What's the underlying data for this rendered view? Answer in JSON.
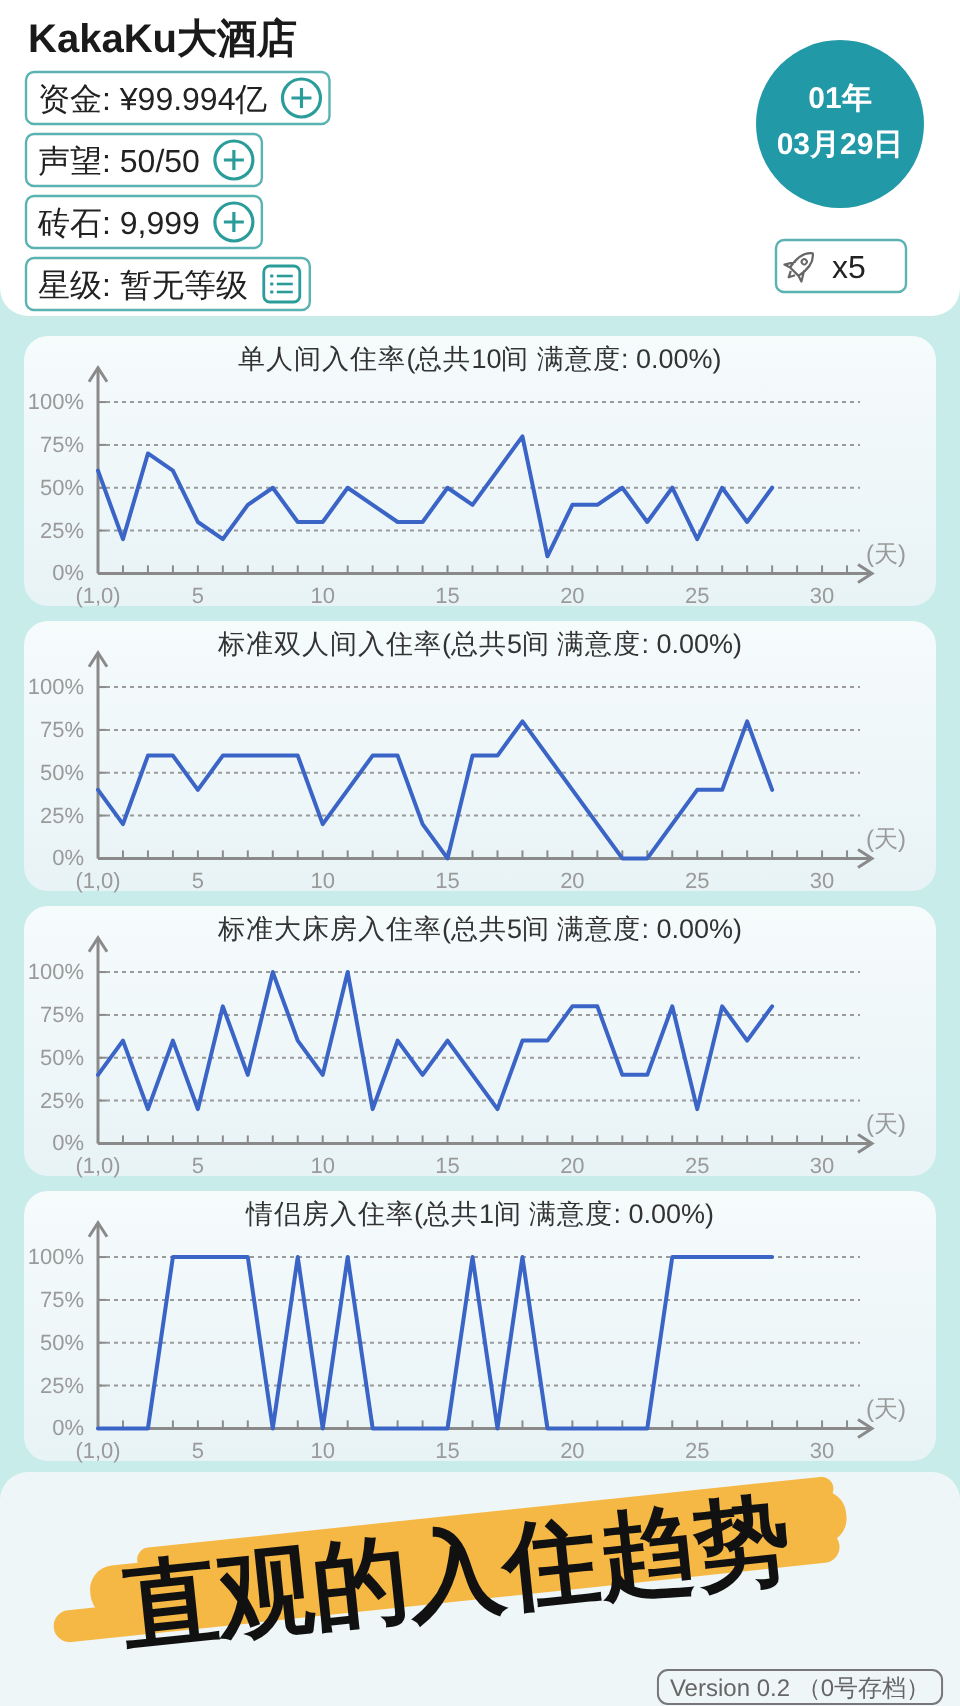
{
  "chart_data": [
    {
      "type": "other",
      "title": "KakaKu大酒店",
      "annotations": [
        "资金: ¥99.994亿",
        "声望: 50/50",
        "砖石: 9,999",
        "星级: 暂无等级",
        "01年",
        "03月29日",
        "x5"
      ]
    },
    {
      "type": "line",
      "title": "单人间入住率(总共10间 满意度: 0.00%)",
      "xlabel": "(天)",
      "x": [
        1,
        2,
        3,
        4,
        5,
        6,
        7,
        8,
        9,
        10,
        11,
        12,
        13,
        14,
        15,
        16,
        17,
        18,
        19,
        20,
        21,
        22,
        23,
        24,
        25,
        26,
        27,
        28
      ],
      "series": [
        {
          "color": "#3b64c7",
          "values": [
            60,
            20,
            70,
            60,
            30,
            20,
            40,
            50,
            30,
            30,
            50,
            40,
            30,
            30,
            50,
            40,
            60,
            80,
            10,
            40,
            40,
            50,
            30,
            50,
            20,
            50,
            30,
            50
          ]
        }
      ],
      "xlim": [
        1,
        32
      ],
      "ylim": [
        0,
        120
      ],
      "xticks": [
        {
          "value": 1,
          "label": "(1,0)"
        },
        {
          "value": 2,
          "label": null
        },
        {
          "value": 3,
          "label": null
        },
        {
          "value": 4,
          "label": null
        },
        5,
        {
          "value": 6,
          "label": null
        },
        {
          "value": 7,
          "label": null
        },
        {
          "value": 8,
          "label": null
        },
        {
          "value": 9,
          "label": null
        },
        10,
        {
          "value": 11,
          "label": null
        },
        {
          "value": 12,
          "label": null
        },
        {
          "value": 13,
          "label": null
        },
        {
          "value": 14,
          "label": null
        },
        15,
        {
          "value": 16,
          "label": null
        },
        {
          "value": 17,
          "label": null
        },
        {
          "value": 18,
          "label": null
        },
        {
          "value": 19,
          "label": null
        },
        20,
        {
          "value": 21,
          "label": null
        },
        {
          "value": 22,
          "label": null
        },
        {
          "value": 23,
          "label": null
        },
        {
          "value": 24,
          "label": null
        },
        25,
        {
          "value": 26,
          "label": null
        },
        {
          "value": 27,
          "label": null
        },
        {
          "value": 28,
          "label": null
        },
        {
          "value": 29,
          "label": null
        },
        30,
        {
          "value": 31,
          "label": null
        }
      ],
      "yticks": [
        {
          "value": 0,
          "label": "0%"
        },
        {
          "value": 25,
          "label": "25%"
        },
        {
          "value": 50,
          "label": "50%"
        },
        {
          "value": 75,
          "label": "75%"
        },
        {
          "value": 100,
          "label": "100%"
        }
      ],
      "grid": "y"
    },
    {
      "type": "line",
      "title": "标准双人间入住率(总共5间 满意度: 0.00%)",
      "xlabel": "(天)",
      "x": [
        1,
        2,
        3,
        4,
        5,
        6,
        7,
        8,
        9,
        10,
        11,
        12,
        13,
        14,
        15,
        16,
        17,
        18,
        19,
        20,
        21,
        22,
        23,
        24,
        25,
        26,
        27,
        28
      ],
      "series": [
        {
          "color": "#3b64c7",
          "values": [
            40,
            20,
            60,
            60,
            40,
            60,
            60,
            60,
            60,
            20,
            40,
            60,
            60,
            20,
            0,
            60,
            60,
            80,
            60,
            40,
            20,
            0,
            0,
            20,
            40,
            40,
            80,
            40
          ]
        }
      ],
      "xlim": [
        1,
        32
      ],
      "ylim": [
        0,
        120
      ],
      "xticks": [
        {
          "value": 1,
          "label": "(1,0)"
        },
        {
          "value": 2,
          "label": null
        },
        {
          "value": 3,
          "label": null
        },
        {
          "value": 4,
          "label": null
        },
        5,
        {
          "value": 6,
          "label": null
        },
        {
          "value": 7,
          "label": null
        },
        {
          "value": 8,
          "label": null
        },
        {
          "value": 9,
          "label": null
        },
        10,
        {
          "value": 11,
          "label": null
        },
        {
          "value": 12,
          "label": null
        },
        {
          "value": 13,
          "label": null
        },
        {
          "value": 14,
          "label": null
        },
        15,
        {
          "value": 16,
          "label": null
        },
        {
          "value": 17,
          "label": null
        },
        {
          "value": 18,
          "label": null
        },
        {
          "value": 19,
          "label": null
        },
        20,
        {
          "value": 21,
          "label": null
        },
        {
          "value": 22,
          "label": null
        },
        {
          "value": 23,
          "label": null
        },
        {
          "value": 24,
          "label": null
        },
        25,
        {
          "value": 26,
          "label": null
        },
        {
          "value": 27,
          "label": null
        },
        {
          "value": 28,
          "label": null
        },
        {
          "value": 29,
          "label": null
        },
        30,
        {
          "value": 31,
          "label": null
        }
      ],
      "yticks": [
        {
          "value": 0,
          "label": "0%"
        },
        {
          "value": 25,
          "label": "25%"
        },
        {
          "value": 50,
          "label": "50%"
        },
        {
          "value": 75,
          "label": "75%"
        },
        {
          "value": 100,
          "label": "100%"
        }
      ],
      "grid": "y"
    },
    {
      "type": "line",
      "title": "标准大床房入住率(总共5间 满意度: 0.00%)",
      "xlabel": "(天)",
      "x": [
        1,
        2,
        3,
        4,
        5,
        6,
        7,
        8,
        9,
        10,
        11,
        12,
        13,
        14,
        15,
        16,
        17,
        18,
        19,
        20,
        21,
        22,
        23,
        24,
        25,
        26,
        27,
        28
      ],
      "series": [
        {
          "color": "#3b64c7",
          "values": [
            40,
            60,
            20,
            60,
            20,
            80,
            40,
            100,
            60,
            40,
            100,
            20,
            60,
            40,
            60,
            40,
            20,
            60,
            60,
            80,
            80,
            40,
            40,
            80,
            20,
            80,
            60,
            80
          ]
        }
      ],
      "xlim": [
        1,
        32
      ],
      "ylim": [
        0,
        120
      ],
      "xticks": [
        {
          "value": 1,
          "label": "(1,0)"
        },
        {
          "value": 2,
          "label": null
        },
        {
          "value": 3,
          "label": null
        },
        {
          "value": 4,
          "label": null
        },
        5,
        {
          "value": 6,
          "label": null
        },
        {
          "value": 7,
          "label": null
        },
        {
          "value": 8,
          "label": null
        },
        {
          "value": 9,
          "label": null
        },
        10,
        {
          "value": 11,
          "label": null
        },
        {
          "value": 12,
          "label": null
        },
        {
          "value": 13,
          "label": null
        },
        {
          "value": 14,
          "label": null
        },
        15,
        {
          "value": 16,
          "label": null
        },
        {
          "value": 17,
          "label": null
        },
        {
          "value": 18,
          "label": null
        },
        {
          "value": 19,
          "label": null
        },
        20,
        {
          "value": 21,
          "label": null
        },
        {
          "value": 22,
          "label": null
        },
        {
          "value": 23,
          "label": null
        },
        {
          "value": 24,
          "label": null
        },
        25,
        {
          "value": 26,
          "label": null
        },
        {
          "value": 27,
          "label": null
        },
        {
          "value": 28,
          "label": null
        },
        {
          "value": 29,
          "label": null
        },
        30,
        {
          "value": 31,
          "label": null
        }
      ],
      "yticks": [
        {
          "value": 0,
          "label": "0%"
        },
        {
          "value": 25,
          "label": "25%"
        },
        {
          "value": 50,
          "label": "50%"
        },
        {
          "value": 75,
          "label": "75%"
        },
        {
          "value": 100,
          "label": "100%"
        }
      ],
      "grid": "y"
    },
    {
      "type": "line",
      "title": "情侣房入住率(总共1间 满意度: 0.00%)",
      "xlabel": "(天)",
      "x": [
        1,
        2,
        3,
        4,
        5,
        6,
        7,
        8,
        9,
        10,
        11,
        12,
        13,
        14,
        15,
        16,
        17,
        18,
        19,
        20,
        21,
        22,
        23,
        24,
        25,
        26,
        27,
        28
      ],
      "series": [
        {
          "color": "#3b64c7",
          "values": [
            0,
            0,
            0,
            100,
            100,
            100,
            100,
            0,
            100,
            0,
            100,
            0,
            0,
            0,
            0,
            100,
            0,
            100,
            0,
            0,
            0,
            0,
            0,
            100,
            100,
            100,
            100,
            100
          ]
        }
      ],
      "xlim": [
        1,
        32
      ],
      "ylim": [
        0,
        120
      ],
      "xticks": [
        {
          "value": 1,
          "label": "(1,0)"
        },
        {
          "value": 2,
          "label": null
        },
        {
          "value": 3,
          "label": null
        },
        {
          "value": 4,
          "label": null
        },
        5,
        {
          "value": 6,
          "label": null
        },
        {
          "value": 7,
          "label": null
        },
        {
          "value": 8,
          "label": null
        },
        {
          "value": 9,
          "label": null
        },
        10,
        {
          "value": 11,
          "label": null
        },
        {
          "value": 12,
          "label": null
        },
        {
          "value": 13,
          "label": null
        },
        {
          "value": 14,
          "label": null
        },
        15,
        {
          "value": 16,
          "label": null
        },
        {
          "value": 17,
          "label": null
        },
        {
          "value": 18,
          "label": null
        },
        {
          "value": 19,
          "label": null
        },
        20,
        {
          "value": 21,
          "label": null
        },
        {
          "value": 22,
          "label": null
        },
        {
          "value": 23,
          "label": null
        },
        {
          "value": 24,
          "label": null
        },
        25,
        {
          "value": 26,
          "label": null
        },
        {
          "value": 27,
          "label": null
        },
        {
          "value": 28,
          "label": null
        },
        {
          "value": 29,
          "label": null
        },
        30,
        {
          "value": 31,
          "label": null
        }
      ],
      "yticks": [
        {
          "value": 0,
          "label": "0%"
        },
        {
          "value": 25,
          "label": "25%"
        },
        {
          "value": 50,
          "label": "50%"
        },
        {
          "value": 75,
          "label": "75%"
        },
        {
          "value": 100,
          "label": "100%"
        }
      ],
      "grid": "y"
    },
    {
      "type": "other",
      "annotations": [
        "直观的入住趋势",
        "Version 0.2 （0号存档）"
      ]
    }
  ]
}
